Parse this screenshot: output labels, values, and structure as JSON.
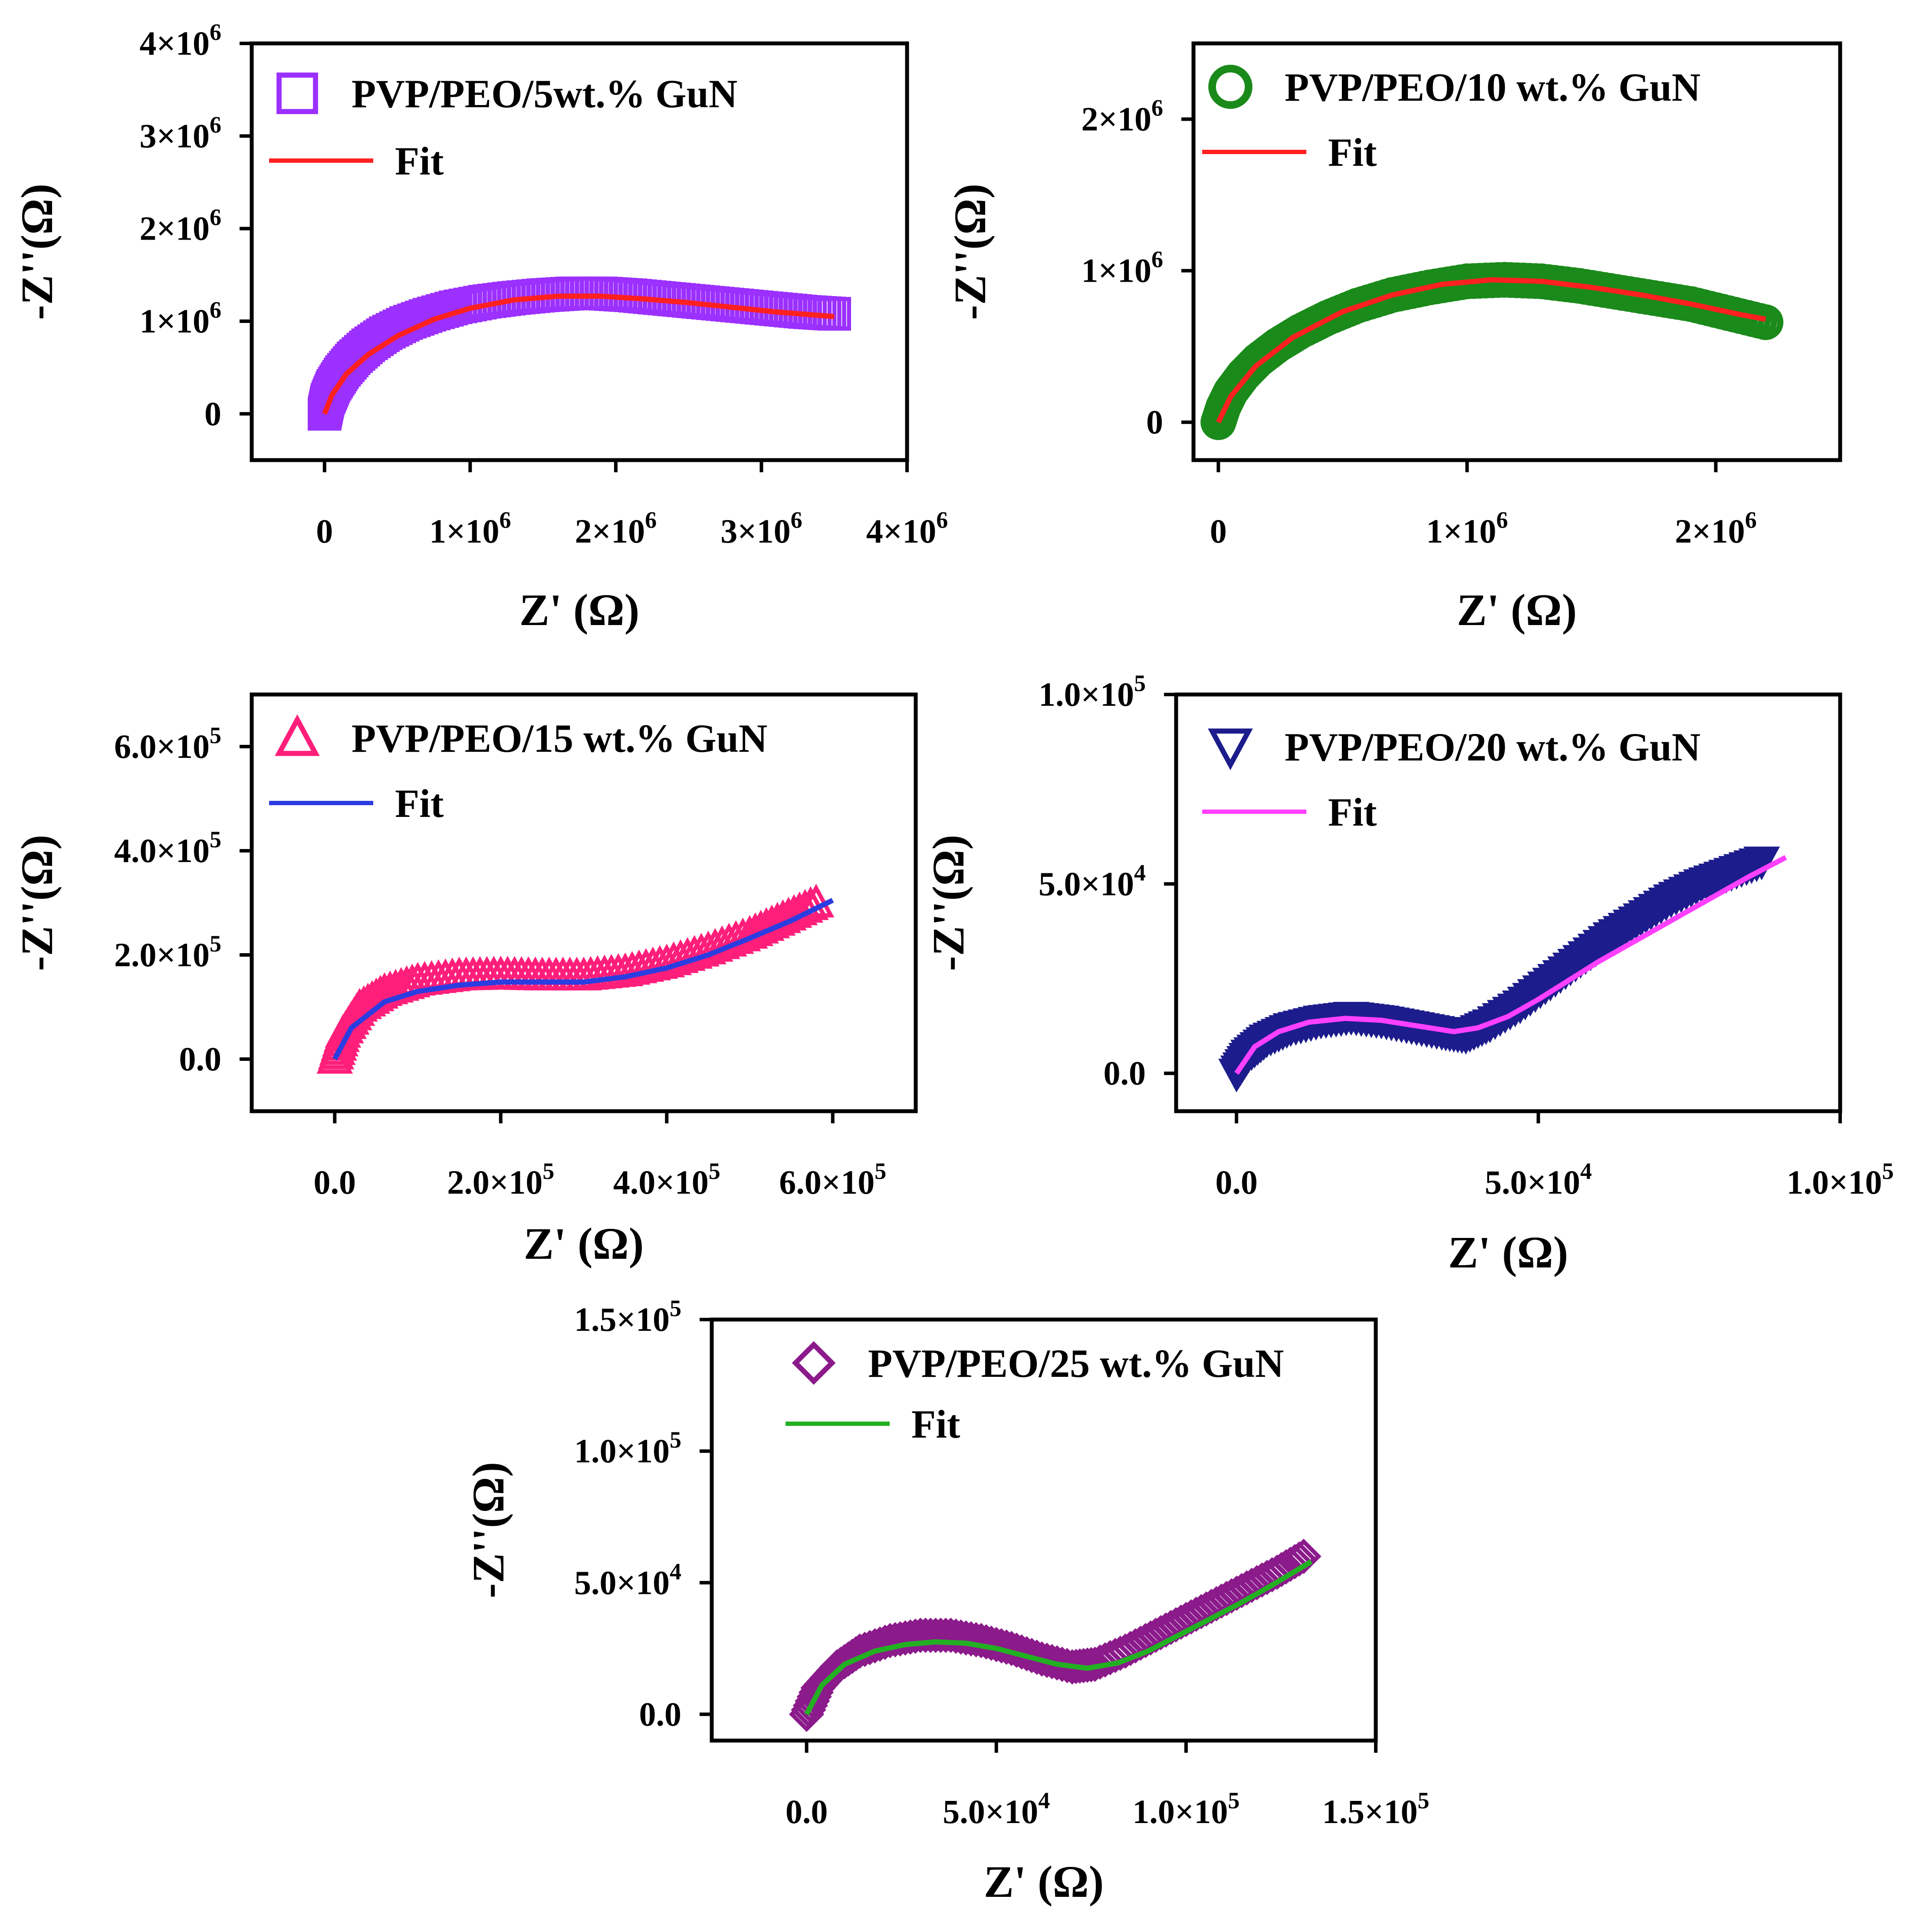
{
  "figure": {
    "description_free": true,
    "panel_count": 5
  },
  "chart_data": [
    {
      "type": "scatter",
      "title": "",
      "xlabel": "Z' (Ω)",
      "ylabel": "-Z''(Ω)",
      "xlim": [
        -500000,
        4000000
      ],
      "ylim": [
        -500000,
        4000000
      ],
      "xticks": [
        {
          "value": 0,
          "mant": "0",
          "exp": ""
        },
        {
          "value": 1000000,
          "mant": "1×10",
          "exp": "6"
        },
        {
          "value": 2000000,
          "mant": "2×10",
          "exp": "6"
        },
        {
          "value": 3000000,
          "mant": "3×10",
          "exp": "6"
        },
        {
          "value": 4000000,
          "mant": "4×10",
          "exp": "6"
        }
      ],
      "yticks": [
        {
          "value": 0,
          "mant": "0",
          "exp": ""
        },
        {
          "value": 1000000,
          "mant": "1×10",
          "exp": "6"
        },
        {
          "value": 2000000,
          "mant": "2×10",
          "exp": "6"
        },
        {
          "value": 3000000,
          "mant": "3×10",
          "exp": "6"
        },
        {
          "value": 4000000,
          "mant": "4×10",
          "exp": "6"
        }
      ],
      "series": [
        {
          "name": "PVP/PEO/5wt.% GuN",
          "marker": "square",
          "color": "#9b30ff",
          "x": [
            0,
            20000,
            60000,
            120000,
            200000,
            300000,
            420000,
            560000,
            720000,
            900000,
            1100000,
            1300000,
            1500000,
            1700000,
            1900000,
            2100000,
            2300000,
            2500000,
            2700000,
            2900000,
            3100000,
            3300000,
            3500000
          ],
          "y": [
            0,
            150000,
            300000,
            450000,
            600000,
            740000,
            870000,
            980000,
            1070000,
            1150000,
            1210000,
            1250000,
            1280000,
            1300000,
            1300000,
            1280000,
            1250000,
            1220000,
            1190000,
            1160000,
            1130000,
            1100000,
            1080000
          ]
        },
        {
          "name": "Fit",
          "marker": "line",
          "color": "#ff2020",
          "x": [
            0,
            50000,
            150000,
            300000,
            500000,
            750000,
            1000000,
            1300000,
            1600000,
            1900000,
            2200000,
            2500000,
            2800000,
            3100000,
            3500000
          ],
          "y": [
            0,
            200000,
            430000,
            640000,
            840000,
            1020000,
            1140000,
            1230000,
            1270000,
            1270000,
            1240000,
            1200000,
            1150000,
            1100000,
            1050000
          ]
        }
      ]
    },
    {
      "type": "scatter",
      "title": "",
      "xlabel": "Z' (Ω)",
      "ylabel": "-Z''(Ω)",
      "xlim": [
        -100000,
        2500000
      ],
      "ylim": [
        -250000,
        2500000
      ],
      "xticks": [
        {
          "value": 0,
          "mant": "0",
          "exp": ""
        },
        {
          "value": 1000000,
          "mant": "1×10",
          "exp": "6"
        },
        {
          "value": 2000000,
          "mant": "2×10",
          "exp": "6"
        }
      ],
      "yticks": [
        {
          "value": 0,
          "mant": "0",
          "exp": ""
        },
        {
          "value": 1000000,
          "mant": "1×10",
          "exp": "6"
        },
        {
          "value": 2000000,
          "mant": "2×10",
          "exp": "6"
        }
      ],
      "series": [
        {
          "name": "PVP/PEO/10 wt.% GuN",
          "marker": "circle",
          "color": "#1a8a1a",
          "x": [
            0,
            20000,
            50000,
            100000,
            160000,
            240000,
            330000,
            440000,
            560000,
            700000,
            850000,
            1000000,
            1150000,
            1300000,
            1450000,
            1600000,
            1750000,
            1900000,
            2050000,
            2200000
          ],
          "y": [
            0,
            100000,
            200000,
            310000,
            410000,
            510000,
            600000,
            690000,
            770000,
            840000,
            890000,
            930000,
            940000,
            930000,
            900000,
            860000,
            820000,
            780000,
            720000,
            660000
          ]
        },
        {
          "name": "Fit",
          "marker": "line",
          "color": "#ff2020",
          "x": [
            0,
            50000,
            150000,
            300000,
            500000,
            700000,
            900000,
            1100000,
            1300000,
            1500000,
            1700000,
            1900000,
            2100000,
            2200000
          ],
          "y": [
            0,
            170000,
            370000,
            560000,
            730000,
            840000,
            910000,
            940000,
            930000,
            890000,
            840000,
            780000,
            710000,
            680000
          ]
        }
      ]
    },
    {
      "type": "scatter",
      "title": "",
      "xlabel": "Z' (Ω)",
      "ylabel": "-Z''(Ω)",
      "xlim": [
        -100000,
        700000
      ],
      "ylim": [
        -100000,
        700000
      ],
      "xticks": [
        {
          "value": 0,
          "mant": "0.0",
          "exp": ""
        },
        {
          "value": 200000,
          "mant": "2.0×10",
          "exp": "5"
        },
        {
          "value": 400000,
          "mant": "4.0×10",
          "exp": "5"
        },
        {
          "value": 600000,
          "mant": "6.0×10",
          "exp": "5"
        }
      ],
      "yticks": [
        {
          "value": 0,
          "mant": "0.0",
          "exp": ""
        },
        {
          "value": 200000,
          "mant": "2.0×10",
          "exp": "5"
        },
        {
          "value": 400000,
          "mant": "4.0×10",
          "exp": "5"
        },
        {
          "value": 600000,
          "mant": "6.0×10",
          "exp": "5"
        }
      ],
      "series": [
        {
          "name": "PVP/PEO/15 wt.% GuN",
          "marker": "triangle",
          "color": "#ff1f7a",
          "x": [
            0,
            10000,
            30000,
            60000,
            100000,
            150000,
            200000,
            250000,
            300000,
            350000,
            400000,
            450000,
            500000,
            540000,
            580000
          ],
          "y": [
            0,
            50000,
            100000,
            130000,
            150000,
            160000,
            162000,
            160000,
            160000,
            168000,
            185000,
            210000,
            240000,
            270000,
            300000
          ]
        },
        {
          "name": "Fit",
          "marker": "line",
          "color": "#2b3de0",
          "x": [
            0,
            20000,
            60000,
            100000,
            150000,
            200000,
            250000,
            300000,
            350000,
            400000,
            450000,
            500000,
            550000,
            600000
          ],
          "y": [
            0,
            60000,
            110000,
            130000,
            142000,
            148000,
            148000,
            148000,
            158000,
            175000,
            200000,
            232000,
            266000,
            305000
          ]
        }
      ]
    },
    {
      "type": "scatter",
      "title": "",
      "xlabel": "Z' (Ω)",
      "ylabel": "-Z''(Ω)",
      "xlim": [
        -10000,
        100000
      ],
      "ylim": [
        -10000,
        100000
      ],
      "xticks": [
        {
          "value": 0,
          "mant": "0.0",
          "exp": ""
        },
        {
          "value": 50000,
          "mant": "5.0×10",
          "exp": "4"
        },
        {
          "value": 100000,
          "mant": "1.0×10",
          "exp": "5"
        }
      ],
      "yticks": [
        {
          "value": 0,
          "mant": "0.0",
          "exp": ""
        },
        {
          "value": 50000,
          "mant": "5.0×10",
          "exp": "4"
        },
        {
          "value": 100000,
          "mant": "1.0×10",
          "exp": "5"
        }
      ],
      "series": [
        {
          "name": "PVP/PEO/20 wt.% GuN",
          "marker": "triangle-down",
          "color": "#1c1c8c",
          "x": [
            0,
            2000,
            5000,
            9000,
            14000,
            19000,
            24000,
            29000,
            34000,
            38000,
            42000,
            47000,
            52000,
            57000,
            62000,
            67000,
            72000,
            77000,
            82000,
            87000
          ],
          "y": [
            0,
            5000,
            9000,
            12000,
            14000,
            15000,
            14000,
            12500,
            11000,
            10000,
            13000,
            18000,
            24000,
            30000,
            36000,
            41000,
            46000,
            50000,
            53000,
            56000
          ]
        },
        {
          "name": "Fit",
          "marker": "line",
          "color": "#ff40ff",
          "x": [
            0,
            3000,
            7000,
            12000,
            18000,
            24000,
            30000,
            36000,
            40000,
            45000,
            50000,
            55000,
            60000,
            65000,
            70000,
            75000,
            80000,
            85000,
            91000
          ],
          "y": [
            0,
            7000,
            11000,
            13500,
            14500,
            14000,
            12500,
            11000,
            12000,
            15000,
            19500,
            24500,
            29500,
            34000,
            38500,
            43000,
            47500,
            52000,
            57000
          ]
        }
      ]
    },
    {
      "type": "scatter",
      "title": "",
      "xlabel": "Z' (Ω)",
      "ylabel": "-Z''(Ω)",
      "xlim": [
        -25000,
        150000
      ],
      "ylim": [
        -10000,
        150000
      ],
      "xticks": [
        {
          "value": 0,
          "mant": "0.0",
          "exp": ""
        },
        {
          "value": 50000,
          "mant": "5.0×10",
          "exp": "4"
        },
        {
          "value": 100000,
          "mant": "1.0×10",
          "exp": "5"
        },
        {
          "value": 150000,
          "mant": "1.5×10",
          "exp": "5"
        }
      ],
      "yticks": [
        {
          "value": 0,
          "mant": "0.0",
          "exp": ""
        },
        {
          "value": 50000,
          "mant": "5.0×10",
          "exp": "4"
        },
        {
          "value": 100000,
          "mant": "1.0×10",
          "exp": "5"
        },
        {
          "value": 150000,
          "mant": "1.5×10",
          "exp": "5"
        }
      ],
      "series": [
        {
          "name": "PVP/PEO/25 wt.% GuN",
          "marker": "diamond",
          "color": "#8b1a8b",
          "x": [
            0,
            3000,
            8000,
            14000,
            22000,
            30000,
            38000,
            46000,
            54000,
            62000,
            70000,
            76000,
            84000,
            92000,
            100000,
            108000,
            116000,
            124000,
            131000
          ],
          "y": [
            0,
            10000,
            18000,
            24000,
            28000,
            30000,
            30000,
            28000,
            25000,
            21000,
            18000,
            19000,
            24000,
            30000,
            36000,
            42000,
            48000,
            54000,
            60000
          ]
        },
        {
          "name": "Fit",
          "marker": "line",
          "color": "#22b022",
          "x": [
            0,
            4000,
            10000,
            18000,
            26000,
            34000,
            42000,
            50000,
            58000,
            66000,
            74000,
            82000,
            90000,
            98000,
            106000,
            114000,
            122000,
            133000
          ],
          "y": [
            0,
            11000,
            19000,
            24000,
            26500,
            27500,
            27000,
            25000,
            22000,
            19000,
            17500,
            19500,
            24000,
            30000,
            36000,
            42000,
            48500,
            58000
          ]
        }
      ]
    }
  ]
}
